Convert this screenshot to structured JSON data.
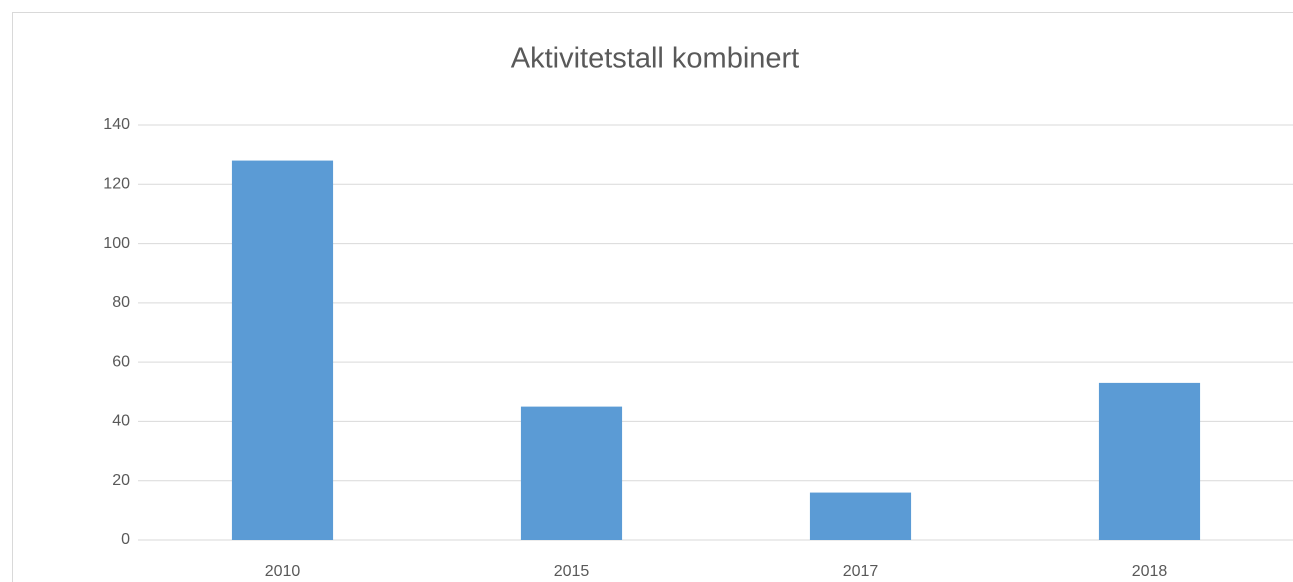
{
  "chart_data": {
    "type": "bar",
    "title": "Aktivitetstall kombinert",
    "categories": [
      "2010",
      "2015",
      "2017",
      "2018"
    ],
    "values": [
      128,
      45,
      16,
      53
    ],
    "color": "#5b9bd5",
    "ylim": [
      0,
      140
    ],
    "yticks": [
      0,
      20,
      40,
      60,
      80,
      100,
      120,
      140
    ],
    "grid": true
  }
}
